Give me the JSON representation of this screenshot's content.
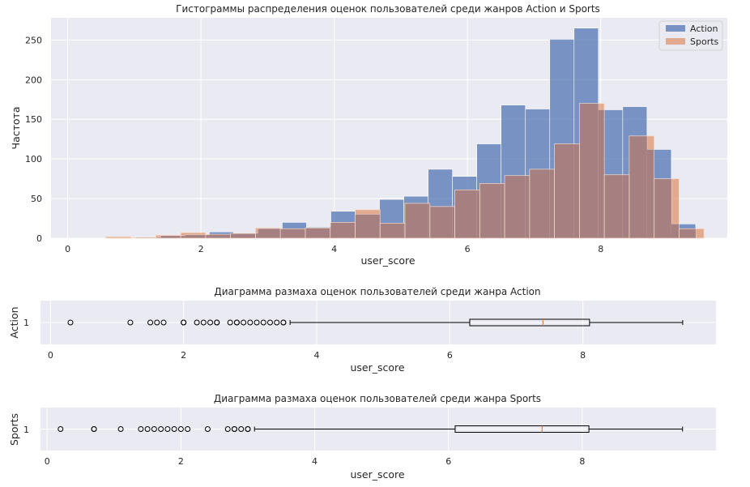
{
  "colors": {
    "axes_bg": "#eaeaf2",
    "grid": "#ffffff",
    "action": "#4c72b0",
    "sports": "#dd8452",
    "overlap": "#a67f81",
    "median": "#dd8452",
    "box_edge": "#000000"
  },
  "chart_data": [
    {
      "type": "bar",
      "title": "Гистограммы распределения оценок пользователей среди жанров Action и Sports",
      "xlabel": "user_score",
      "ylabel": "Частота",
      "xlim": [
        -0.25,
        9.9
      ],
      "ylim": [
        0,
        278
      ],
      "xticks": [
        0,
        2,
        4,
        6,
        8
      ],
      "yticks": [
        0,
        50,
        100,
        150,
        200,
        250
      ],
      "grid": true,
      "legend_position": "top-right",
      "series": [
        {
          "name": "Action",
          "bins": [
            [
              0.3,
              0.665,
              0
            ],
            [
              0.665,
              1.03,
              0
            ],
            [
              1.03,
              1.395,
              1
            ],
            [
              1.395,
              1.76,
              3
            ],
            [
              1.76,
              2.125,
              4
            ],
            [
              2.125,
              2.49,
              8
            ],
            [
              2.49,
              2.855,
              6
            ],
            [
              2.855,
              3.22,
              12
            ],
            [
              3.22,
              3.585,
              20
            ],
            [
              3.585,
              3.95,
              14
            ],
            [
              3.95,
              4.315,
              34
            ],
            [
              4.315,
              4.68,
              30
            ],
            [
              4.68,
              5.045,
              49
            ],
            [
              5.045,
              5.41,
              53
            ],
            [
              5.41,
              5.775,
              87
            ],
            [
              5.775,
              6.14,
              78
            ],
            [
              6.14,
              6.505,
              119
            ],
            [
              6.505,
              6.87,
              168
            ],
            [
              6.87,
              7.235,
              163
            ],
            [
              7.235,
              7.6,
              251
            ],
            [
              7.6,
              7.965,
              265
            ],
            [
              7.965,
              8.33,
              162
            ],
            [
              8.33,
              8.695,
              166
            ],
            [
              8.695,
              9.06,
              112
            ],
            [
              9.06,
              9.425,
              18
            ]
          ]
        },
        {
          "name": "Sports",
          "bins": [
            [
              0.2,
              0.574,
              0
            ],
            [
              0.574,
              0.948,
              2
            ],
            [
              0.948,
              1.322,
              1
            ],
            [
              1.322,
              1.696,
              4
            ],
            [
              1.696,
              2.07,
              7
            ],
            [
              2.07,
              2.444,
              5
            ],
            [
              2.444,
              2.818,
              6
            ],
            [
              2.818,
              3.192,
              13
            ],
            [
              3.192,
              3.566,
              12
            ],
            [
              3.566,
              3.94,
              13
            ],
            [
              3.94,
              4.314,
              20
            ],
            [
              4.314,
              4.688,
              36
            ],
            [
              4.688,
              5.062,
              19
            ],
            [
              5.062,
              5.436,
              44
            ],
            [
              5.436,
              5.81,
              40
            ],
            [
              5.81,
              6.184,
              61
            ],
            [
              6.184,
              6.558,
              69
            ],
            [
              6.558,
              6.932,
              79
            ],
            [
              6.932,
              7.306,
              87
            ],
            [
              7.306,
              7.68,
              119
            ],
            [
              7.68,
              8.054,
              170
            ],
            [
              8.054,
              8.428,
              80
            ],
            [
              8.428,
              8.802,
              129
            ],
            [
              8.802,
              9.176,
              75
            ],
            [
              9.176,
              9.55,
              12
            ]
          ]
        }
      ]
    },
    {
      "type": "box",
      "title": "Диаграмма размаха оценок пользователей среди жанра Action",
      "xlabel": "user_score",
      "ylabel": "Action",
      "category": "1",
      "xlim": [
        -0.15,
        10.0
      ],
      "xticks": [
        0,
        2,
        4,
        6,
        8
      ],
      "q1": 6.3,
      "median": 7.4,
      "q3": 8.1,
      "whisker_low": 3.6,
      "whisker_high": 9.5,
      "outliers": [
        0.3,
        1.2,
        1.5,
        1.6,
        1.7,
        2.0,
        2.0,
        2.2,
        2.3,
        2.4,
        2.5,
        2.5,
        2.7,
        2.8,
        2.8,
        2.9,
        3.0,
        3.1,
        3.2,
        3.3,
        3.4,
        3.5,
        3.5
      ]
    },
    {
      "type": "box",
      "title": "Диаграмма размаха оценок пользователей среди жанра Sports",
      "xlabel": "user_score",
      "ylabel": "Sports",
      "category": "1",
      "xlim": [
        -0.1,
        10.0
      ],
      "xticks": [
        0,
        2,
        4,
        6,
        8
      ],
      "q1": 6.1,
      "median": 7.4,
      "q3": 8.1,
      "whisker_low": 3.1,
      "whisker_high": 9.5,
      "outliers": [
        0.2,
        0.7,
        0.7,
        1.1,
        1.4,
        1.5,
        1.6,
        1.7,
        1.8,
        1.9,
        2.0,
        2.1,
        2.4,
        2.7,
        2.8,
        2.8,
        2.9,
        3.0,
        3.0
      ]
    }
  ]
}
